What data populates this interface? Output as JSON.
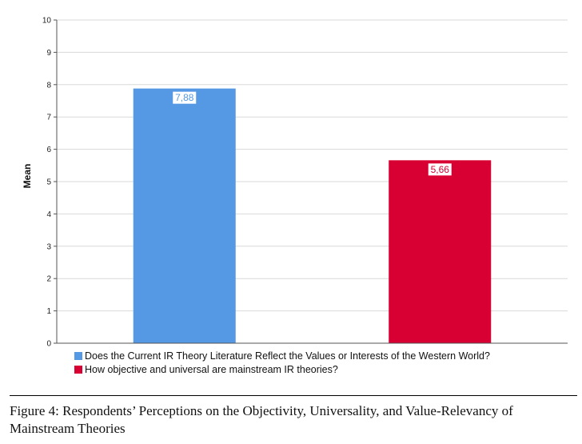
{
  "chart_data": {
    "type": "bar",
    "ylabel": "Mean",
    "ylim": [
      0,
      10
    ],
    "yticks": [
      "0",
      "1",
      "2",
      "3",
      "4",
      "5",
      "6",
      "7",
      "8",
      "9",
      "10"
    ],
    "grid": true,
    "legend_position": "bottom-left",
    "series": [
      {
        "name": "Does the Current IR Theory Literature Reflect the Values or Interests of the Western World?",
        "value": 7.88,
        "label": "7,88",
        "color": "#5598e3"
      },
      {
        "name": "How objective and universal are mainstream IR theories?",
        "value": 5.66,
        "label": "5,66",
        "color": "#d80033"
      }
    ]
  },
  "caption": "Figure 4: Respondents’ Perceptions on the Objectivity, Universality, and Value-Relevancy of Mainstream Theories"
}
